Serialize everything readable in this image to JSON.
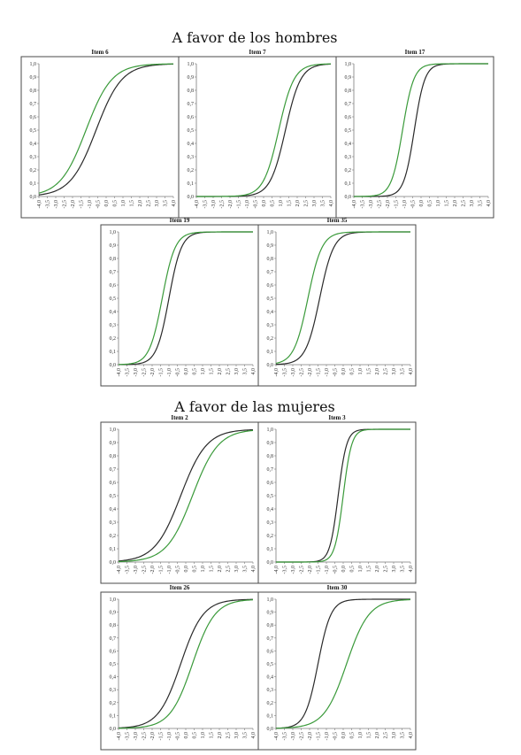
{
  "figure": {
    "sections": [
      {
        "title": "A favor de los hombres"
      },
      {
        "title": "A favor de las mujeres"
      }
    ]
  },
  "chart_data": [
    {
      "type": "line",
      "title": "Item 6",
      "x": [
        -4.0,
        4.0
      ],
      "ylim": [
        0.0,
        1.0
      ],
      "x_ticks": [
        "-4,0",
        "-3,5",
        "-3,0",
        "-2,5",
        "-2,0",
        "-1,5",
        "-1,0",
        "-0,5",
        "0,0",
        "0,5",
        "1,0",
        "1,5",
        "2,0",
        "2,5",
        "3,0",
        "3,5",
        "4,0"
      ],
      "y_ticks": [
        "0,0",
        "0,1",
        "0,2",
        "0,3",
        "0,4",
        "0,5",
        "0,6",
        "0,7",
        "0,8",
        "0,9",
        "1,0"
      ],
      "series": [
        {
          "color": "#2a2a2a",
          "center": -0.6,
          "slope": 1.3
        },
        {
          "color": "#3a9a3a",
          "center": -1.2,
          "slope": 1.3
        }
      ]
    },
    {
      "type": "line",
      "title": "Item 7",
      "x": [
        -4.0,
        4.0
      ],
      "ylim": [
        0.0,
        1.0
      ],
      "x_ticks": [
        "-4,0",
        "-3,5",
        "-3,0",
        "-2,5",
        "-2,0",
        "-1,5",
        "-1,0",
        "-0,5",
        "0,0",
        "0,5",
        "1,0",
        "1,5",
        "2,0",
        "2,5",
        "3,0",
        "3,5",
        "4,0"
      ],
      "y_ticks": [
        "0,0",
        "0,1",
        "0,2",
        "0,3",
        "0,4",
        "0,5",
        "0,6",
        "0,7",
        "0,8",
        "0,9",
        "1,0"
      ],
      "series": [
        {
          "color": "#2a2a2a",
          "center": 1.3,
          "slope": 2.2
        },
        {
          "color": "#3a9a3a",
          "center": 0.9,
          "slope": 2.2
        }
      ]
    },
    {
      "type": "line",
      "title": "Item 17",
      "x": [
        -4.0,
        4.0
      ],
      "ylim": [
        0.0,
        1.0
      ],
      "x_ticks": [
        "-4,0",
        "-3,5",
        "-3,0",
        "-2,5",
        "-2,0",
        "-1,5",
        "-1,0",
        "-0,5",
        "0,0",
        "0,5",
        "1,0",
        "1,5",
        "2,0",
        "2,5",
        "3,0",
        "3,5",
        "4,0"
      ],
      "y_ticks": [
        "0,0",
        "0,1",
        "0,2",
        "0,3",
        "0,4",
        "0,5",
        "0,6",
        "0,7",
        "0,8",
        "0,9",
        "1,0"
      ],
      "series": [
        {
          "color": "#2a2a2a",
          "center": -0.4,
          "slope": 3.2
        },
        {
          "color": "#3a9a3a",
          "center": -1.1,
          "slope": 3.0
        }
      ]
    },
    {
      "type": "line",
      "title": "Item 19",
      "x": [
        -4.0,
        4.0
      ],
      "ylim": [
        0.0,
        1.0
      ],
      "x_ticks": [
        "-4,0",
        "-3,5",
        "-3,0",
        "-2,5",
        "-2,0",
        "-1,5",
        "-1,0",
        "-0,5",
        "0,0",
        "0,5",
        "1,0",
        "1,5",
        "2,0",
        "2,5",
        "3,0",
        "3,5",
        "4,0"
      ],
      "y_ticks": [
        "0,0",
        "0,1",
        "0,2",
        "0,3",
        "0,4",
        "0,5",
        "0,6",
        "0,7",
        "0,8",
        "0,9",
        "1,0"
      ],
      "series": [
        {
          "color": "#2a2a2a",
          "center": -1.0,
          "slope": 2.7
        },
        {
          "color": "#3a9a3a",
          "center": -1.4,
          "slope": 2.6
        }
      ]
    },
    {
      "type": "line",
      "title": "Item 35",
      "x": [
        -4.0,
        4.0
      ],
      "ylim": [
        0.0,
        1.0
      ],
      "x_ticks": [
        "-4,0",
        "-3,5",
        "-3,0",
        "-2,5",
        "-2,0",
        "-1,5",
        "-1,0",
        "-0,5",
        "0,0",
        "0,5",
        "1,0",
        "1,5",
        "2,0",
        "2,5",
        "3,0",
        "3,5",
        "4,0"
      ],
      "y_ticks": [
        "0,0",
        "0,1",
        "0,2",
        "0,3",
        "0,4",
        "0,5",
        "0,6",
        "0,7",
        "0,8",
        "0,9",
        "1,0"
      ],
      "series": [
        {
          "color": "#2a2a2a",
          "center": -1.4,
          "slope": 2.4
        },
        {
          "color": "#3a9a3a",
          "center": -2.1,
          "slope": 2.4
        }
      ]
    },
    {
      "type": "line",
      "title": "Item 2",
      "x": [
        -4.0,
        4.0
      ],
      "ylim": [
        0.0,
        1.0
      ],
      "x_ticks": [
        "-4,0",
        "-3,5",
        "-3,0",
        "-2,5",
        "-2,0",
        "-1,5",
        "-1,0",
        "-0,5",
        "0,0",
        "0,5",
        "1,0",
        "1,5",
        "2,0",
        "2,5",
        "3,0",
        "3,5",
        "4,0"
      ],
      "y_ticks": [
        "0,0",
        "0,1",
        "0,2",
        "0,3",
        "0,4",
        "0,5",
        "0,6",
        "0,7",
        "0,8",
        "0,9",
        "1,0"
      ],
      "series": [
        {
          "color": "#2a2a2a",
          "center": -0.3,
          "slope": 1.3
        },
        {
          "color": "#3a9a3a",
          "center": 0.4,
          "slope": 1.3
        }
      ]
    },
    {
      "type": "line",
      "title": "Item 3",
      "x": [
        -4.0,
        4.0
      ],
      "ylim": [
        0.0,
        1.0
      ],
      "x_ticks": [
        "-4,0",
        "-3,5",
        "-3,0",
        "-2,5",
        "-2,0",
        "-1,5",
        "-1,0",
        "-0,5",
        "0,0",
        "0,5",
        "1,0",
        "1,5",
        "2,0",
        "2,5",
        "3,0",
        "3,5",
        "4,0"
      ],
      "y_ticks": [
        "0,0",
        "0,1",
        "0,2",
        "0,3",
        "0,4",
        "0,5",
        "0,6",
        "0,7",
        "0,8",
        "0,9",
        "1,0"
      ],
      "series": [
        {
          "color": "#2a2a2a",
          "center": -0.3,
          "slope": 4.0
        },
        {
          "color": "#3a9a3a",
          "center": 0.0,
          "slope": 4.0
        }
      ]
    },
    {
      "type": "line",
      "title": "Item 26",
      "x": [
        -4.0,
        4.0
      ],
      "ylim": [
        0.0,
        1.0
      ],
      "x_ticks": [
        "-4,0",
        "-3,5",
        "-3,0",
        "-2,5",
        "-2,0",
        "-1,5",
        "-1,0",
        "-0,5",
        "0,0",
        "0,5",
        "1,0",
        "1,5",
        "2,0",
        "2,5",
        "3,0",
        "3,5",
        "4,0"
      ],
      "y_ticks": [
        "0,0",
        "0,1",
        "0,2",
        "0,3",
        "0,4",
        "0,5",
        "0,6",
        "0,7",
        "0,8",
        "0,9",
        "1,0"
      ],
      "series": [
        {
          "color": "#2a2a2a",
          "center": -0.3,
          "slope": 1.5
        },
        {
          "color": "#3a9a3a",
          "center": 0.4,
          "slope": 1.5
        }
      ]
    },
    {
      "type": "line",
      "title": "Item 30",
      "x": [
        -4.0,
        4.0
      ],
      "ylim": [
        0.0,
        1.0
      ],
      "x_ticks": [
        "-4,0",
        "-3,5",
        "-3,0",
        "-2,5",
        "-2,0",
        "-1,5",
        "-1,0",
        "-0,5",
        "0,0",
        "0,5",
        "1,0",
        "1,5",
        "2,0",
        "2,5",
        "3,0",
        "3,5",
        "4,0"
      ],
      "y_ticks": [
        "0,0",
        "0,1",
        "0,2",
        "0,3",
        "0,4",
        "0,5",
        "0,6",
        "0,7",
        "0,8",
        "0,9",
        "1,0"
      ],
      "series": [
        {
          "color": "#2a2a2a",
          "center": -1.5,
          "slope": 2.6
        },
        {
          "color": "#3a9a3a",
          "center": 0.2,
          "slope": 1.5
        }
      ]
    }
  ]
}
